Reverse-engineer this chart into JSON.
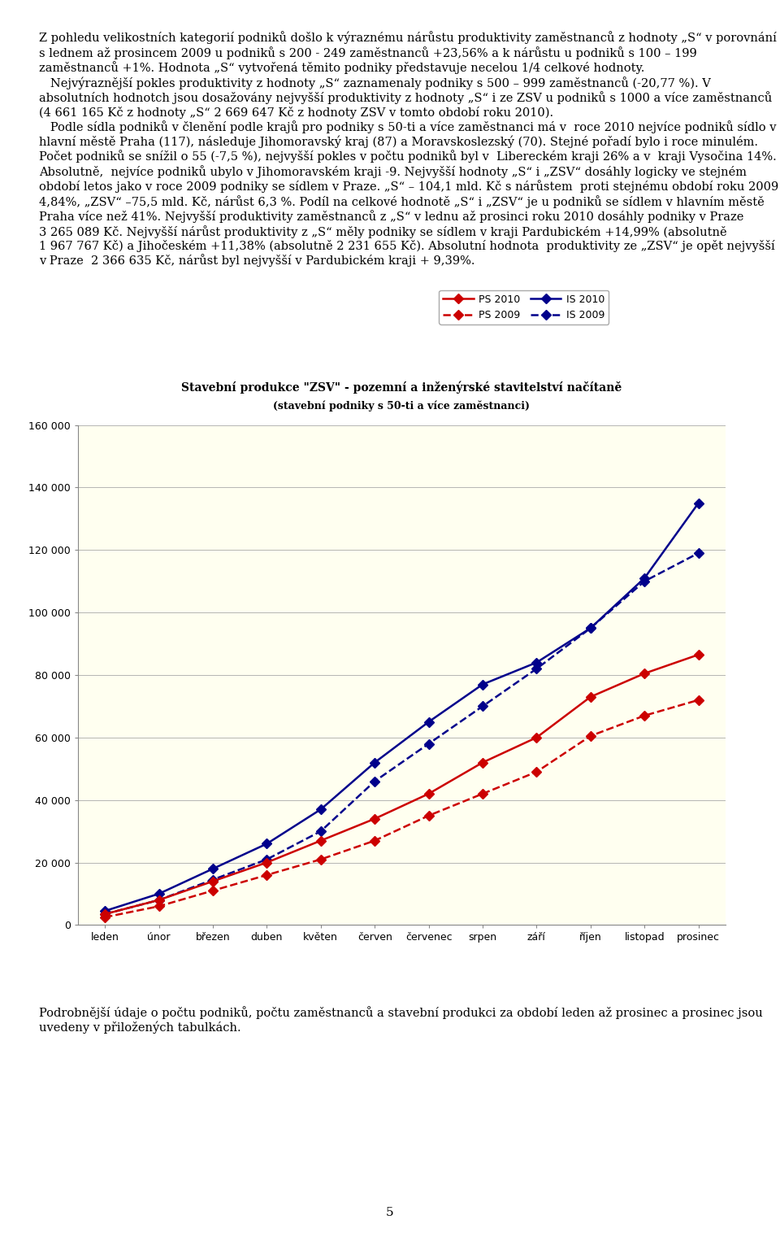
{
  "title_line1": "Stavební produkce \"ZSV\" - pozemní a inženýrské stavitelství načítaně",
  "title_line2": "(stavební podniky s 50-ti a více zaměstnanci)",
  "x_labels": [
    "leden",
    "únor",
    "březen",
    "duben",
    "květen",
    "červen",
    "červenec",
    "srpen",
    "září",
    "říjen",
    "listopad",
    "prosinec"
  ],
  "PS_2010": [
    3500,
    8000,
    14000,
    20000,
    27000,
    34000,
    42000,
    52000,
    60000,
    73000,
    80500,
    86500
  ],
  "PS_2009": [
    2500,
    6000,
    11000,
    16000,
    21000,
    27000,
    35000,
    42000,
    49000,
    60500,
    67000,
    72000
  ],
  "IS_2010": [
    4500,
    10000,
    18000,
    26000,
    37000,
    52000,
    65000,
    77000,
    84000,
    95000,
    111000,
    135000
  ],
  "IS_2009": [
    3500,
    8000,
    14500,
    21000,
    30000,
    46000,
    58000,
    70000,
    82000,
    95000,
    110000,
    119000
  ],
  "ylim": [
    0,
    160000
  ],
  "yticks": [
    0,
    20000,
    40000,
    60000,
    80000,
    100000,
    120000,
    140000,
    160000
  ],
  "color_PS": "#cc0000",
  "color_IS": "#00008b",
  "bg_color": "#fffff0",
  "plot_bg": "#fffff0",
  "outer_bg": "#ffffff",
  "legend_PS2010": "PS 2010",
  "legend_PS2009": "PS 2009",
  "legend_IS2010": "IS 2010",
  "legend_IS2009": "IS 2009"
}
